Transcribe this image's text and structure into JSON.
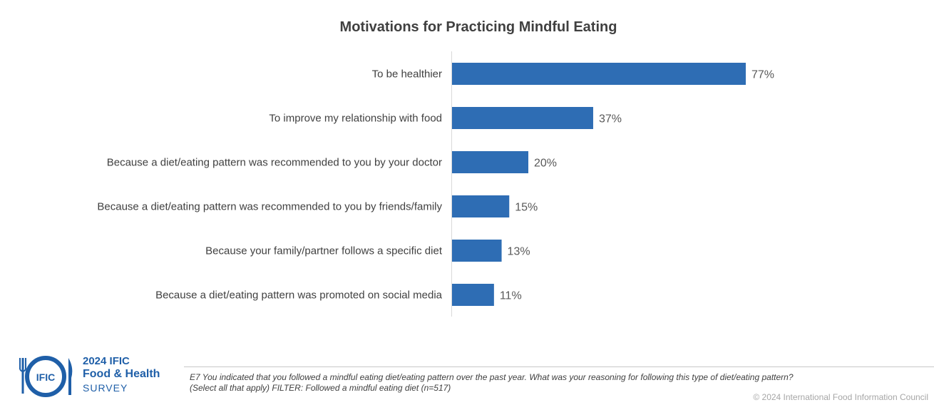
{
  "chart_data": {
    "type": "bar",
    "orientation": "horizontal",
    "title": "Motivations for Practicing Mindful Eating",
    "categories": [
      "To be healthier",
      "To improve my relationship with food",
      "Because a diet/eating pattern was recommended to you by your doctor",
      "Because a diet/eating pattern was recommended to you by friends/family",
      "Because your family/partner follows a specific diet",
      "Because a diet/eating pattern was promoted on social media"
    ],
    "values": [
      77,
      37,
      20,
      15,
      13,
      11
    ],
    "data_labels": [
      "77%",
      "37%",
      "20%",
      "15%",
      "13%",
      "11%"
    ],
    "unit": "%",
    "xlim": [
      0,
      100
    ],
    "bar_color": "#2e6db4",
    "grid": false,
    "legend": "none"
  },
  "logo": {
    "mark_text": "IFIC",
    "year_line": "2024 IFIC",
    "name_line": "Food & Health",
    "survey_line": "SURVEY"
  },
  "footnote": {
    "line1": "E7 You indicated that you followed a mindful eating diet/eating pattern over the past year. What was your reasoning for following this type of diet/eating pattern?",
    "line2": "(Select all that apply) FILTER: Followed a mindful eating diet (n=517)"
  },
  "copyright": "© 2024 International Food Information Council",
  "colors": {
    "brand_blue": "#1f5fa8",
    "text_dark": "#404040"
  }
}
